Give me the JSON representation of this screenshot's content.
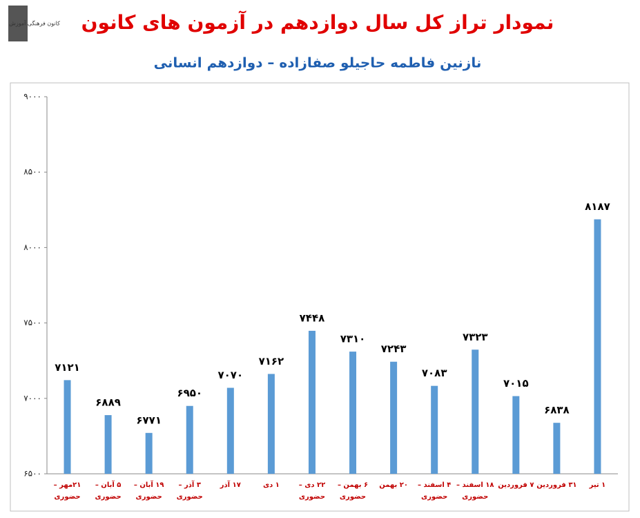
{
  "logo": "کانون فرهنگی آموزش",
  "chart_data": {
    "type": "bar",
    "title": "نمودار تراز کل سال دوازدهم در آزمون های کانون",
    "subtitle": "نازنین فاطمه حاجیلو صفازاده – دوازدهم انسانی",
    "categories": [
      "۲۱مهر –\nحضوری",
      "۵ آبان –\nحضوری",
      "۱۹ آبان –\nحضوری",
      "۳ آذر –\nحضوری",
      "۱۷ آذر",
      "۱ دی",
      "۲۲ دی –\nحضوری",
      "۶ بهمن –\nحضوری",
      "۲۰ بهمن",
      "۴ اسفند –\nحضوری",
      "۱۸ اسفند –\nحضوری",
      "۷ فروردین",
      "۳۱ فروردین",
      "۱ تیر"
    ],
    "values": [
      7121,
      6889,
      6771,
      6950,
      7070,
      7162,
      7448,
      7310,
      7243,
      7083,
      7323,
      7015,
      6838,
      8187
    ],
    "value_labels": [
      "۷۱۲۱",
      "۶۸۸۹",
      "۶۷۷۱",
      "۶۹۵۰",
      "۷۰۷۰",
      "۷۱۶۲",
      "۷۴۴۸",
      "۷۳۱۰",
      "۷۲۴۳",
      "۷۰۸۳",
      "۷۳۲۳",
      "۷۰۱۵",
      "۶۸۳۸",
      "۸۱۸۷"
    ],
    "color": "#5b9bd5",
    "ylim": [
      6500,
      9000
    ],
    "yticks": [
      {
        "value": 6500,
        "label": "۶۵۰۰"
      },
      {
        "value": 7000,
        "label": "۷۰۰۰"
      },
      {
        "value": 7500,
        "label": "۷۵۰۰"
      },
      {
        "value": 8000,
        "label": "۸۰۰۰"
      },
      {
        "value": 8500,
        "label": "۸۵۰۰"
      },
      {
        "value": 9000,
        "label": "۹۰۰۰"
      }
    ]
  }
}
